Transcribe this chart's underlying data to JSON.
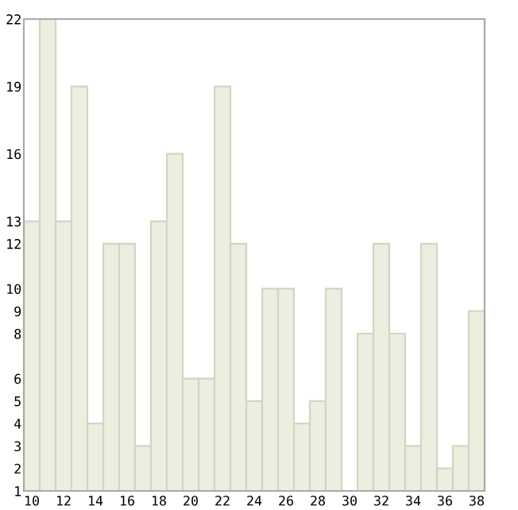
{
  "chart_data": {
    "type": "bar",
    "categories": [
      "10",
      null,
      "12",
      null,
      "14",
      null,
      "16",
      null,
      "18",
      null,
      "20",
      null,
      "22",
      null,
      "24",
      null,
      "26",
      null,
      "28",
      null,
      "30",
      null,
      "32",
      null,
      "34",
      null,
      "36",
      null,
      "38"
    ],
    "values": [
      13,
      22,
      13,
      19,
      4,
      12,
      12,
      3,
      13,
      16,
      6,
      6,
      19,
      12,
      5,
      10,
      10,
      4,
      5,
      10,
      1,
      8,
      12,
      8,
      3,
      12,
      2,
      3,
      9
    ],
    "color": "#eeeee0",
    "ylim": [
      1,
      22
    ],
    "yticks": [
      1,
      2,
      3,
      4,
      5,
      6,
      8,
      9,
      10,
      12,
      13,
      16,
      19,
      22
    ],
    "grid": false,
    "legend": false
  }
}
